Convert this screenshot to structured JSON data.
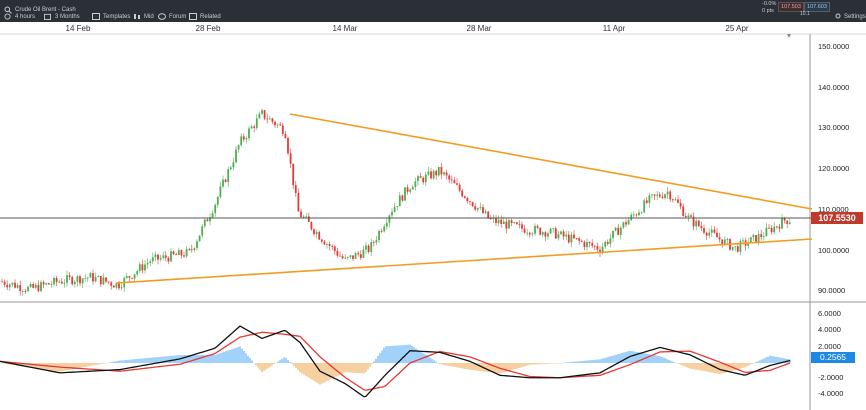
{
  "toolbar": {
    "instrument": "Crude Oil Brent - Cash",
    "timeframe": "4 hours",
    "range": "3 Months",
    "templates": "Templates",
    "mid": "Mid",
    "forum": "Forum",
    "related": "Related",
    "change_pct": "-0.0%",
    "change_pts": "0 pts",
    "sell_price": "107.503",
    "buy_price": "107.603",
    "spread": "10.1",
    "settings": "Settings"
  },
  "chart_data": {
    "type": "candlestick",
    "x_tick_labels": [
      "14 Feb",
      "28 Feb",
      "14 Mar",
      "28 Mar",
      "11 Apr",
      "25 Apr"
    ],
    "price_axis": {
      "ticks": [
        "150.0000",
        "140.0000",
        "130.0000",
        "120.0000",
        "110.0000",
        "100.0000",
        "90.0000"
      ],
      "range": [
        88,
        152
      ],
      "current_price_label": "107.5530",
      "current_price": 107.553
    },
    "indicator_axis": {
      "ticks": [
        "6.0000",
        "4.0000",
        "2.0000",
        "0.0000",
        "-2.0000",
        "-4.0000"
      ],
      "range": [
        -4.5,
        6.2
      ],
      "current_value_label": "0.2565",
      "current_value": 0.2565
    },
    "trendlines": [
      {
        "name": "upper",
        "color": "#f39c21"
      },
      {
        "name": "lower",
        "color": "#f39c21"
      }
    ],
    "colors": {
      "up": "#4caf50",
      "down": "#e53935",
      "histogram_pos": "#64b5f6",
      "histogram_neg": "#f0b060",
      "price_badge": "#c0392b",
      "indicator_badge": "#1e88e5"
    }
  }
}
